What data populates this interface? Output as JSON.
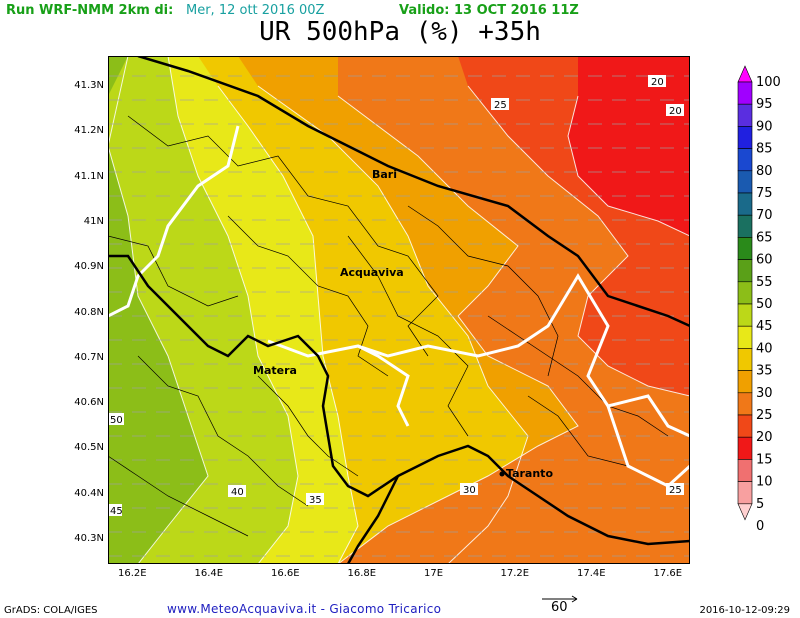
{
  "header": {
    "run_label": "Run WRF-NMM 2km di:",
    "run_init": "Mer, 12 ott 2016 00Z",
    "valid_label": "Valido: 13 OCT 2016 11Z",
    "title": "UR 500hPa (%) +35h"
  },
  "map": {
    "lat_ticks": [
      "41.3N",
      "41.2N",
      "41.1N",
      "41N",
      "40.9N",
      "40.8N",
      "40.7N",
      "40.6N",
      "40.5N",
      "40.4N",
      "40.3N"
    ],
    "lon_ticks": [
      "16.2E",
      "16.4E",
      "16.6E",
      "16.8E",
      "17E",
      "17.2E",
      "17.4E",
      "17.6E"
    ],
    "contour_labels": [
      "20",
      "20",
      "25",
      "25",
      "30",
      "35",
      "40",
      "45",
      "50"
    ],
    "cities": [
      {
        "name": "Bari"
      },
      {
        "name": "Acquaviva"
      },
      {
        "name": "Matera"
      },
      {
        "name": "Taranto"
      }
    ]
  },
  "legend": {
    "levels": [
      "100",
      "95",
      "90",
      "85",
      "80",
      "75",
      "70",
      "65",
      "60",
      "55",
      "50",
      "45",
      "40",
      "35",
      "30",
      "25",
      "20",
      "15",
      "10",
      "5",
      "0"
    ],
    "colors": [
      "#ff00ff",
      "#a000ff",
      "#5a2ee0",
      "#2020e0",
      "#1a48d0",
      "#1a5ab0",
      "#1a6a8a",
      "#1a7060",
      "#2a8a1a",
      "#5aa018",
      "#8cbe18",
      "#bcd818",
      "#e8e818",
      "#f0c800",
      "#f0a000",
      "#f07818",
      "#f04818",
      "#f01818",
      "#f07070",
      "#f8a0a0",
      "#ffd0d0"
    ]
  },
  "footer": {
    "software": "GrADS: COLA/IGES",
    "credit": "www.MeteoAcquaviva.it - Giacomo Tricarico",
    "vector_scale": "60",
    "timestamp": "2016-10-12-09:29"
  }
}
